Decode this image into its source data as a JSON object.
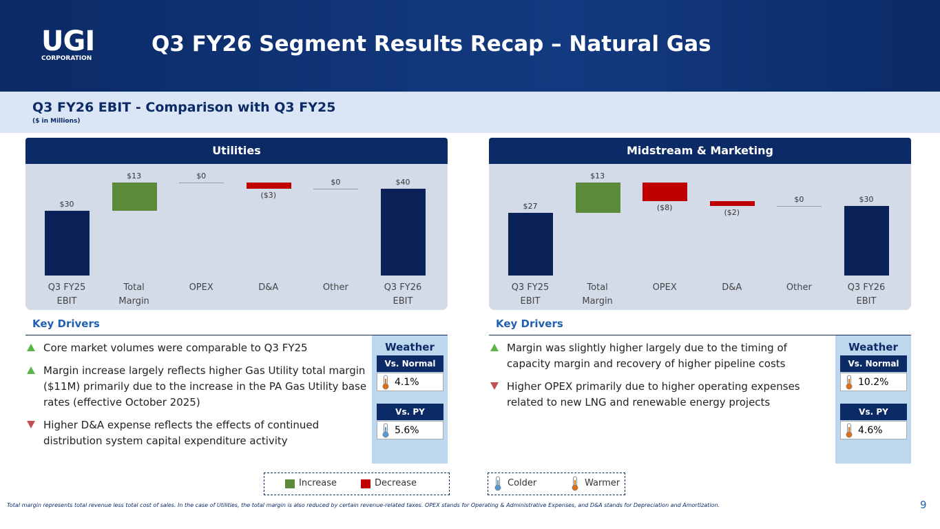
{
  "header": {
    "logo": "UGI",
    "logo_sub": "CORPORATION",
    "title": "Q3 FY26 Segment Results Recap – Natural Gas"
  },
  "subheader": {
    "title": "Q3 FY26 EBIT - Comparison with Q3 FY25",
    "units": "($ in Millions)"
  },
  "chart_data": [
    {
      "type": "waterfall",
      "title": "Utilities",
      "categories": [
        "Q3 FY25 EBIT",
        "Total Margin",
        "OPEX",
        "D&A",
        "Other",
        "Q3 FY26 EBIT"
      ],
      "measures": [
        "absolute",
        "relative",
        "relative",
        "relative",
        "relative",
        "total"
      ],
      "values": [
        30,
        13,
        0,
        -3,
        0,
        40
      ],
      "value_labels": [
        "$30",
        "$13",
        "$0",
        "($3)",
        "$0",
        "$40"
      ],
      "total_color": "#0b2258",
      "increase_color": "#5a8a3a",
      "decrease_color": "#c00000"
    },
    {
      "type": "waterfall",
      "title": "Midstream & Marketing",
      "categories": [
        "Q3 FY25 EBIT",
        "Total Margin",
        "OPEX",
        "D&A",
        "Other",
        "Q3 FY26 EBIT"
      ],
      "measures": [
        "absolute",
        "relative",
        "relative",
        "relative",
        "relative",
        "total"
      ],
      "values": [
        27,
        13,
        -8,
        -2,
        0,
        30
      ],
      "value_labels": [
        "$27",
        "$13",
        "($8)",
        "($2)",
        "$0",
        "$30"
      ],
      "total_color": "#0b2258",
      "increase_color": "#5a8a3a",
      "decrease_color": "#c00000"
    }
  ],
  "drivers": [
    {
      "title": "Key Drivers",
      "bullets": [
        {
          "marker": "up",
          "text": "Core market volumes were comparable to Q3 FY25"
        },
        {
          "marker": "up",
          "text": "Margin increase largely reflects higher Gas Utility total margin ($11M) primarily due to the increase in the PA Gas Utility base rates (effective October 2025)"
        },
        {
          "marker": "down",
          "text": "Higher D&A expense reflects the effects of continued distribution system capital expenditure activity"
        }
      ],
      "weather": {
        "title": "Weather",
        "items": [
          {
            "label": "Vs. Normal",
            "value": "4.1%",
            "color": "#e46c0a"
          },
          {
            "label": "Vs. PY",
            "value": "5.6%",
            "color": "#4f9bd9"
          }
        ]
      }
    },
    {
      "title": "Key Drivers",
      "bullets": [
        {
          "marker": "up",
          "text": "Margin was slightly higher largely due to the timing of capacity margin and recovery of higher pipeline costs"
        },
        {
          "marker": "down",
          "text": "Higher OPEX primarily due to higher operating expenses related to new LNG and renewable energy projects"
        }
      ],
      "weather": {
        "title": "Weather",
        "items": [
          {
            "label": "Vs. Normal",
            "value": "10.2%",
            "color": "#e46c0a"
          },
          {
            "label": "Vs. PY",
            "value": "4.6%",
            "color": "#e46c0a"
          }
        ]
      }
    }
  ],
  "legend": [
    {
      "items": [
        {
          "label": "Increase",
          "color": "#5a8a3a"
        },
        {
          "label": "Decrease",
          "color": "#c00000"
        }
      ]
    },
    {
      "items": [
        {
          "label": "Colder",
          "color": "#4f9bd9"
        },
        {
          "label": "Warmer",
          "color": "#e46c0a"
        }
      ]
    }
  ],
  "footnote": "Total margin represents total revenue less total cost of sales. In the case of Utilities, the total margin is also reduced by certain revenue-related taxes. OPEX stands for Operating & Administrative Expenses, and D&A stands for Depreciation and Amortization.",
  "page_number": "9"
}
